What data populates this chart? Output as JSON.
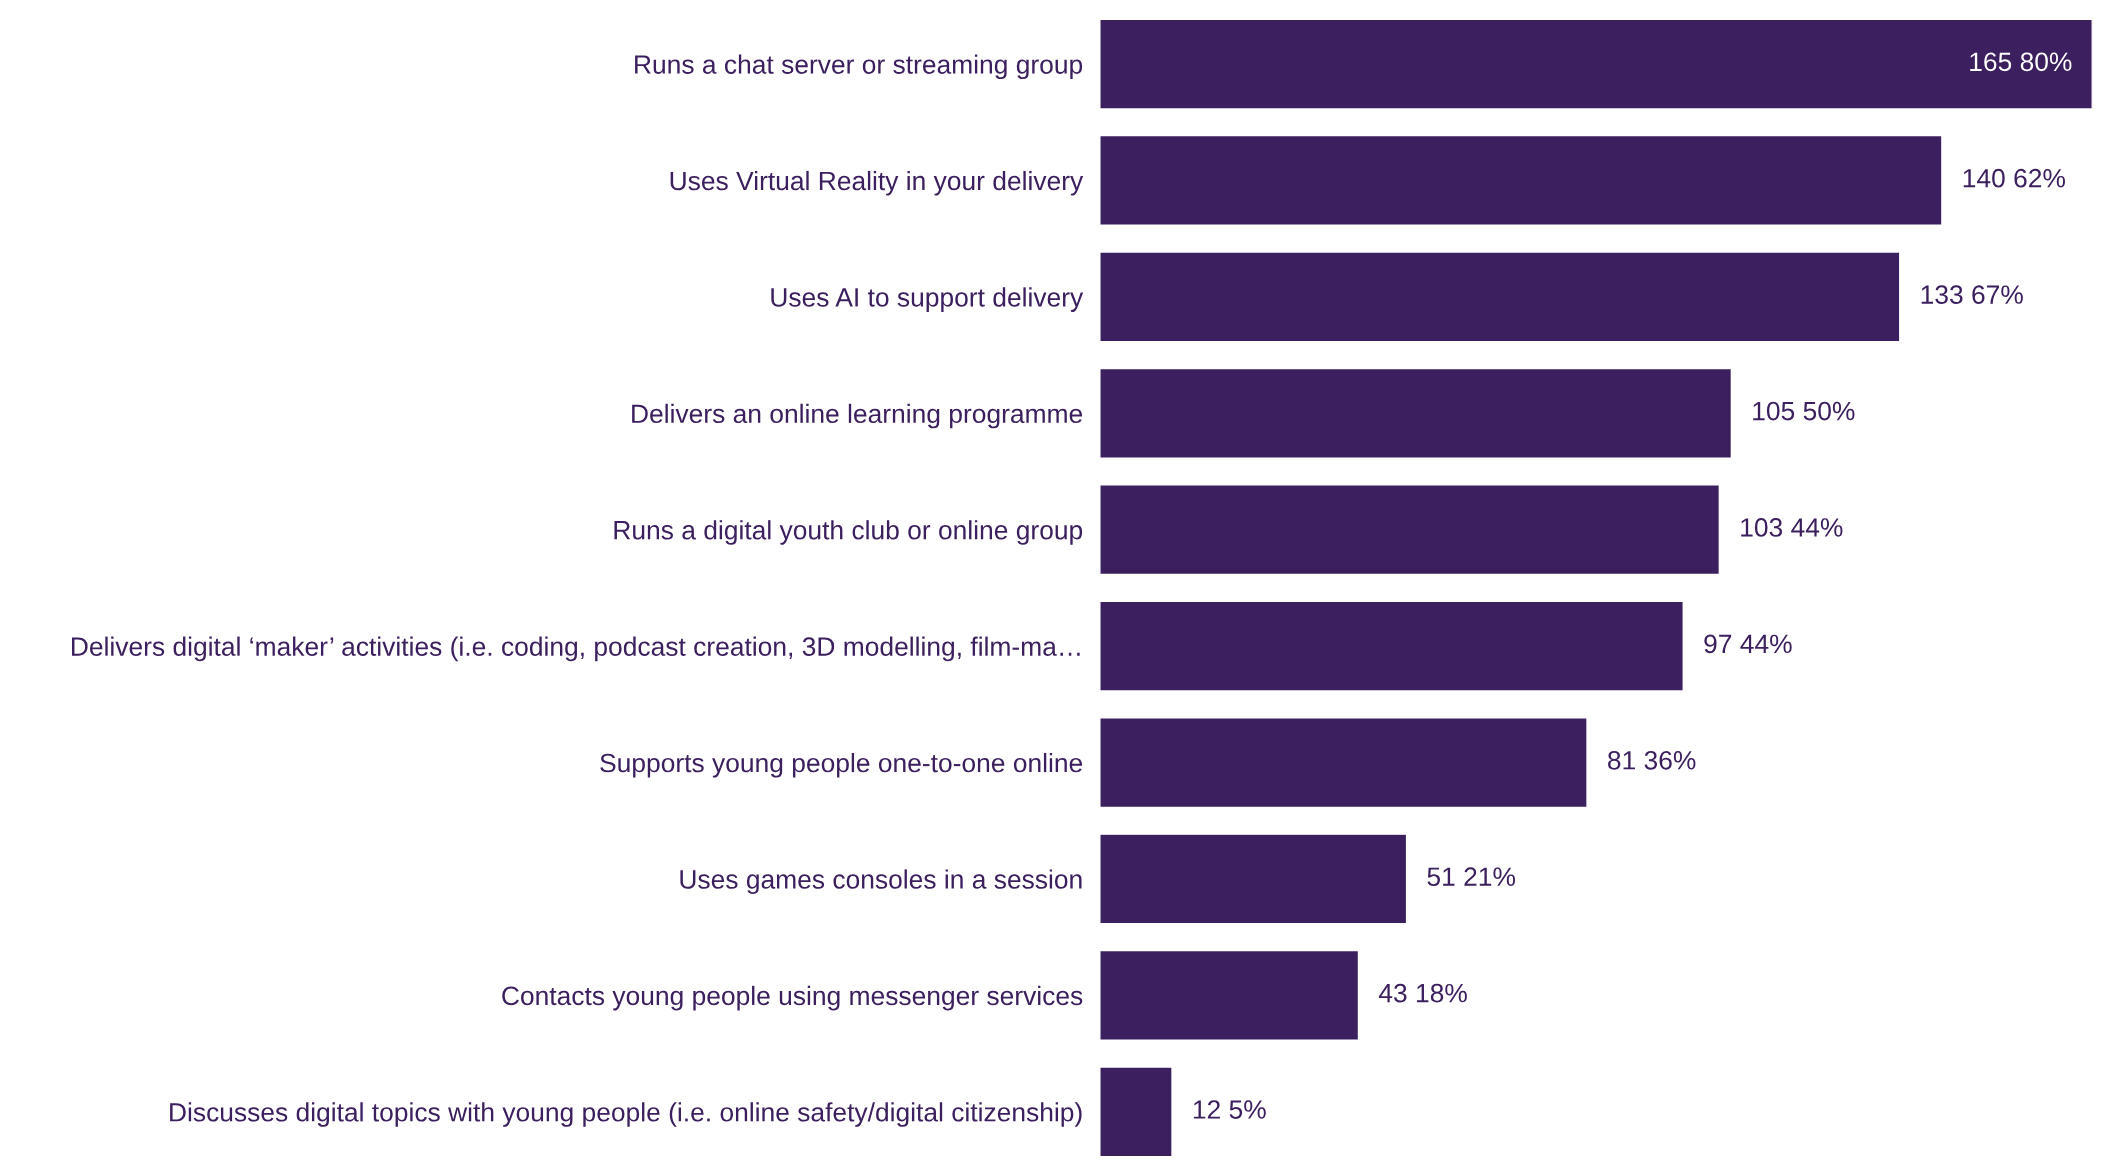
{
  "chart_data": {
    "type": "bar",
    "orientation": "horizontal",
    "categories": [
      "Runs a chat server or streaming group",
      "Uses Virtual Reality in your delivery",
      "Uses AI to support delivery",
      "Delivers an online learning programme",
      "Runs a digital youth club or online group",
      "Delivers digital ‘maker’ activities (i.e. coding, podcast creation, 3D modelling, film-ma…",
      "Supports young people one-to-one online",
      "Uses games consoles in a session",
      "Contacts young people using messenger services",
      "Discusses digital topics with young people (i.e. online safety/digital citizenship)"
    ],
    "values": [
      165,
      140,
      133,
      105,
      103,
      97,
      81,
      51,
      43,
      12
    ],
    "value_labels": [
      "165 80%",
      "140 62%",
      "133 67%",
      "105 50%",
      "103 44%",
      "97 44%",
      "81 36%",
      "51 21%",
      "43 18%",
      "12 5%"
    ],
    "color": "#3b1f5e",
    "xlim": [
      0,
      165
    ],
    "tick_labels": "y"
  }
}
